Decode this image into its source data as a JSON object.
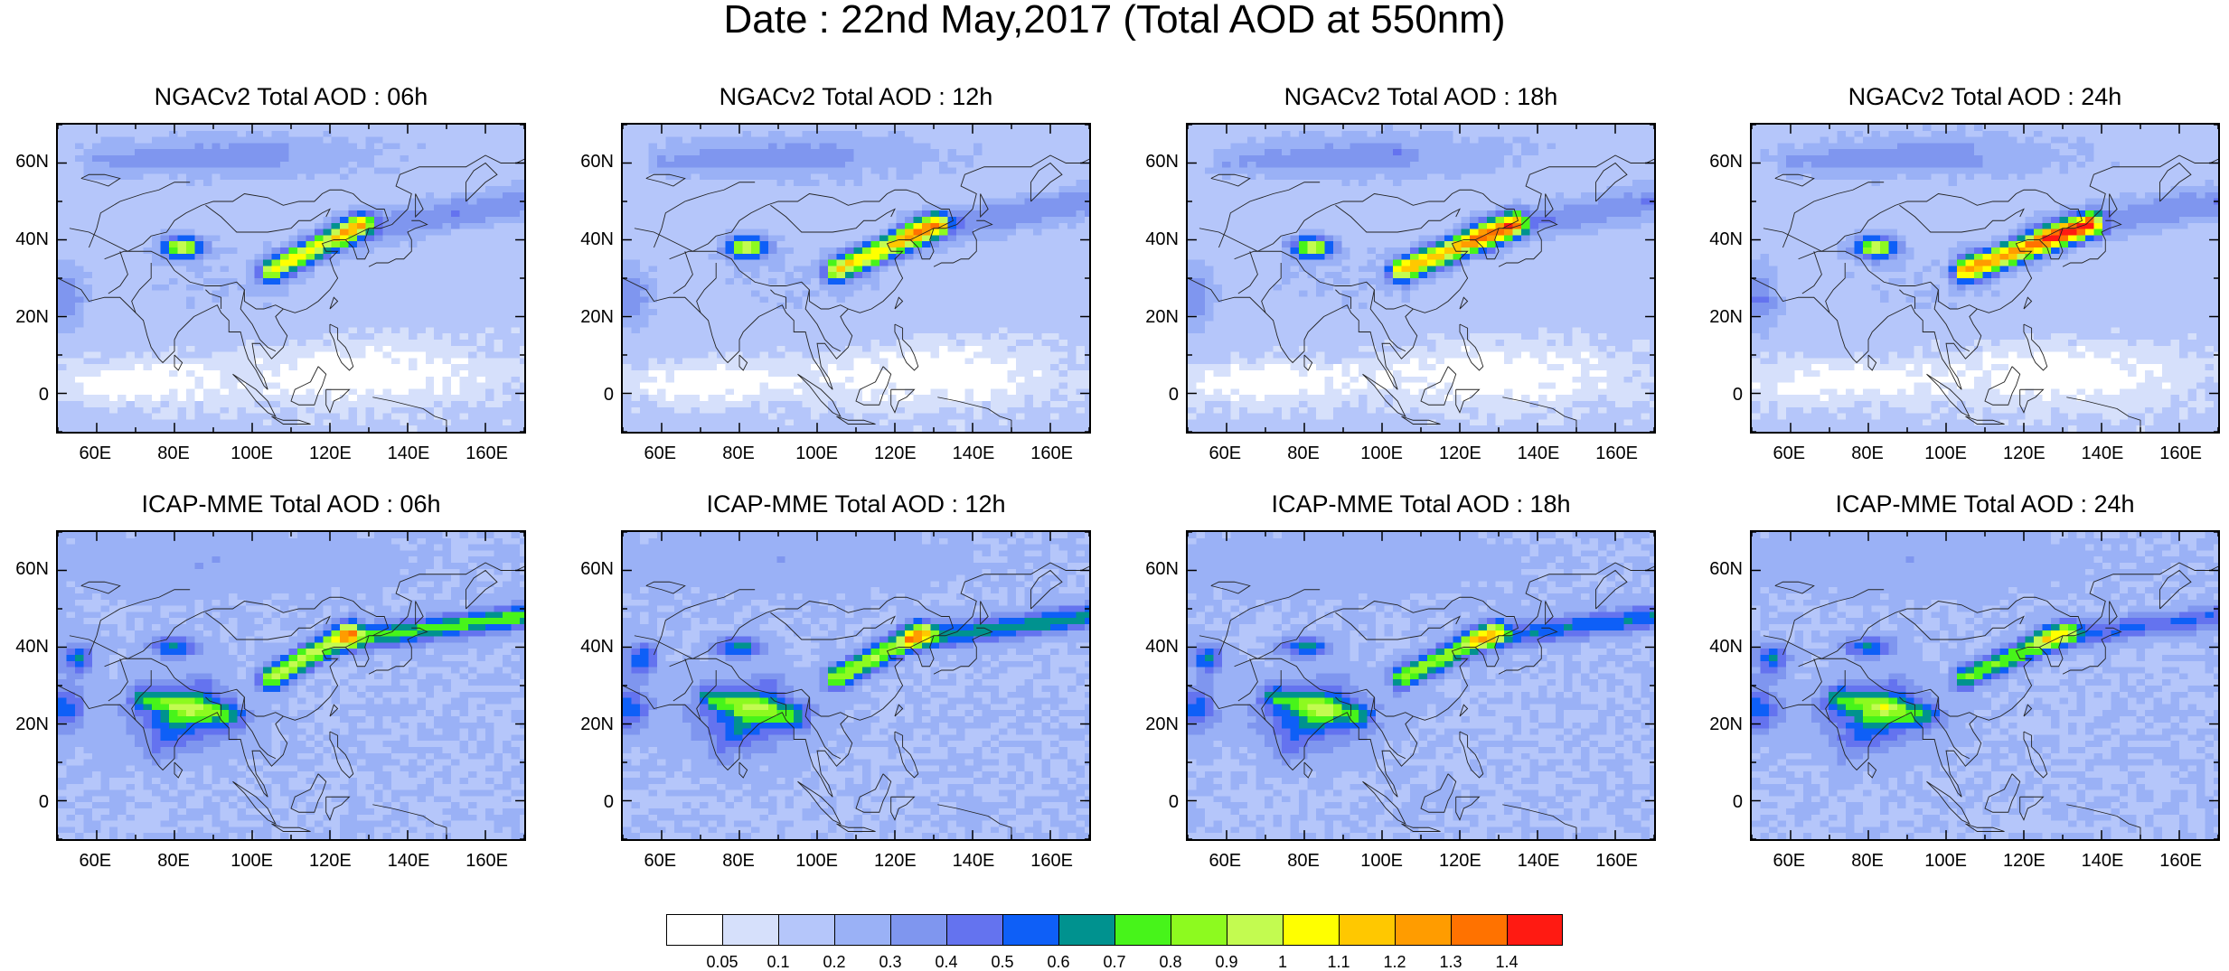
{
  "title": "Date : 22nd May,2017 (Total AOD at 550nm)",
  "panels": [
    {
      "title": "NGACv2 Total AOD : 06h",
      "model": "ngac"
    },
    {
      "title": "NGACv2 Total AOD : 12h",
      "model": "ngac"
    },
    {
      "title": "NGACv2 Total AOD : 18h",
      "model": "ngac"
    },
    {
      "title": "NGACv2 Total AOD : 24h",
      "model": "ngac"
    },
    {
      "title": "ICAP-MME Total AOD : 06h",
      "model": "icap"
    },
    {
      "title": "ICAP-MME Total AOD : 12h",
      "model": "icap"
    },
    {
      "title": "ICAP-MME Total AOD : 18h",
      "model": "icap"
    },
    {
      "title": "ICAP-MME Total AOD : 24h",
      "model": "icap"
    }
  ],
  "axes": {
    "y_ticks": [
      "60N",
      "40N",
      "20N",
      "0"
    ],
    "x_ticks": [
      "60E",
      "80E",
      "100E",
      "120E",
      "140E",
      "160E"
    ],
    "lon_range": [
      50,
      170
    ],
    "lat_range": [
      -10,
      70
    ]
  },
  "colorbar": {
    "labels": [
      "0.05",
      "0.1",
      "0.2",
      "0.3",
      "0.4",
      "0.5",
      "0.6",
      "0.7",
      "0.8",
      "0.9",
      "1",
      "1.1",
      "1.2",
      "1.3",
      "1.4"
    ],
    "colors": [
      "#ffffff",
      "#d6e0fb",
      "#b5c6fa",
      "#9ab1f6",
      "#7f96ef",
      "#6473ef",
      "#0e5ff7",
      "#00928f",
      "#47f41a",
      "#8dfa1f",
      "#c3fb50",
      "#ffff00",
      "#ffc800",
      "#ff9c00",
      "#ff7200",
      "#ff1a12"
    ]
  }
}
